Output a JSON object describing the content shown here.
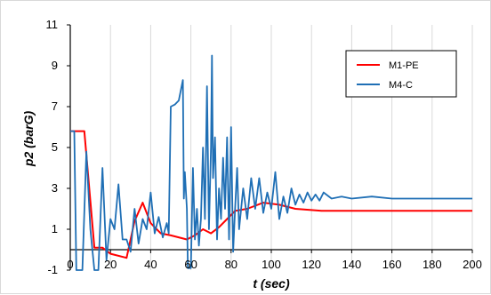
{
  "chart_data": {
    "type": "line",
    "title": "",
    "xlabel": "t (sec)",
    "ylabel": "p2 (barG)",
    "xlim": [
      0,
      200
    ],
    "ylim": [
      -1,
      11
    ],
    "x_ticks": [
      0,
      20,
      40,
      60,
      80,
      100,
      120,
      140,
      160,
      180,
      200
    ],
    "y_ticks": [
      -1,
      1,
      3,
      5,
      7,
      9,
      11
    ],
    "grid": "vertical",
    "legend_position": "top-right",
    "series": [
      {
        "name": "M1-PE",
        "color": "#ff0000",
        "points": [
          [
            0,
            5.8
          ],
          [
            7,
            5.8
          ],
          [
            12,
            0.1
          ],
          [
            16,
            0.1
          ],
          [
            20,
            -0.2
          ],
          [
            28,
            -0.4
          ],
          [
            32,
            1.4
          ],
          [
            36,
            2.3
          ],
          [
            40,
            1.3
          ],
          [
            45,
            0.8
          ],
          [
            50,
            0.7
          ],
          [
            58,
            0.5
          ],
          [
            62,
            0.7
          ],
          [
            66,
            1.0
          ],
          [
            70,
            0.8
          ],
          [
            74,
            1.1
          ],
          [
            78,
            1.5
          ],
          [
            82,
            1.9
          ],
          [
            88,
            2.0
          ],
          [
            96,
            2.3
          ],
          [
            104,
            2.2
          ],
          [
            112,
            2.0
          ],
          [
            125,
            1.9
          ],
          [
            140,
            1.9
          ],
          [
            160,
            1.9
          ],
          [
            180,
            1.9
          ],
          [
            200,
            1.9
          ]
        ]
      },
      {
        "name": "M4-C",
        "color": "#1f6fb5",
        "points": [
          [
            0,
            5.8
          ],
          [
            2,
            5.8
          ],
          [
            3,
            -1
          ],
          [
            6,
            -1
          ],
          [
            8,
            4.8
          ],
          [
            10,
            1
          ],
          [
            12,
            -1
          ],
          [
            14,
            -1
          ],
          [
            16,
            4.0
          ],
          [
            18,
            -0.5
          ],
          [
            20,
            1.5
          ],
          [
            22,
            1.0
          ],
          [
            24,
            3.2
          ],
          [
            26,
            0.5
          ],
          [
            28,
            0.5
          ],
          [
            30,
            -0.1
          ],
          [
            32,
            2.0
          ],
          [
            34,
            0.3
          ],
          [
            36,
            1.5
          ],
          [
            38,
            1.0
          ],
          [
            40,
            2.8
          ],
          [
            42,
            0.8
          ],
          [
            44,
            1.6
          ],
          [
            46,
            0.6
          ],
          [
            48,
            1.3
          ],
          [
            49,
            0.8
          ],
          [
            50,
            7.0
          ],
          [
            52,
            7.1
          ],
          [
            54,
            7.3
          ],
          [
            56,
            8.3
          ],
          [
            56.5,
            2.5
          ],
          [
            57,
            3.8
          ],
          [
            58,
            2.0
          ],
          [
            58.5,
            -0.9
          ],
          [
            60,
            -0.9
          ],
          [
            61,
            4.0
          ],
          [
            62,
            0.5
          ],
          [
            63,
            2.0
          ],
          [
            64,
            0.2
          ],
          [
            65,
            1.5
          ],
          [
            66,
            5.0
          ],
          [
            67,
            1.5
          ],
          [
            68,
            8.0
          ],
          [
            69,
            1.0
          ],
          [
            70,
            5.0
          ],
          [
            70.5,
            9.5
          ],
          [
            71,
            3.5
          ],
          [
            72,
            5.5
          ],
          [
            73,
            0.5
          ],
          [
            74,
            3.0
          ],
          [
            75,
            1.5
          ],
          [
            76,
            4.5
          ],
          [
            77,
            2.0
          ],
          [
            78,
            5.5
          ],
          [
            79,
            0.5
          ],
          [
            80,
            6.0
          ],
          [
            81,
            -0.1
          ],
          [
            82,
            2.0
          ],
          [
            83,
            4.0
          ],
          [
            84,
            1.0
          ],
          [
            86,
            3.0
          ],
          [
            88,
            1.5
          ],
          [
            90,
            3.5
          ],
          [
            92,
            2.0
          ],
          [
            94,
            3.5
          ],
          [
            96,
            1.8
          ],
          [
            98,
            2.8
          ],
          [
            100,
            2.0
          ],
          [
            102,
            3.8
          ],
          [
            104,
            1.5
          ],
          [
            106,
            2.6
          ],
          [
            108,
            1.8
          ],
          [
            110,
            3.0
          ],
          [
            112,
            2.2
          ],
          [
            114,
            2.7
          ],
          [
            116,
            2.3
          ],
          [
            118,
            2.8
          ],
          [
            120,
            2.4
          ],
          [
            122,
            2.7
          ],
          [
            124,
            2.4
          ],
          [
            126,
            2.8
          ],
          [
            130,
            2.5
          ],
          [
            135,
            2.6
          ],
          [
            140,
            2.5
          ],
          [
            150,
            2.6
          ],
          [
            160,
            2.5
          ],
          [
            170,
            2.5
          ],
          [
            180,
            2.5
          ],
          [
            190,
            2.5
          ],
          [
            200,
            2.5
          ]
        ]
      }
    ]
  }
}
